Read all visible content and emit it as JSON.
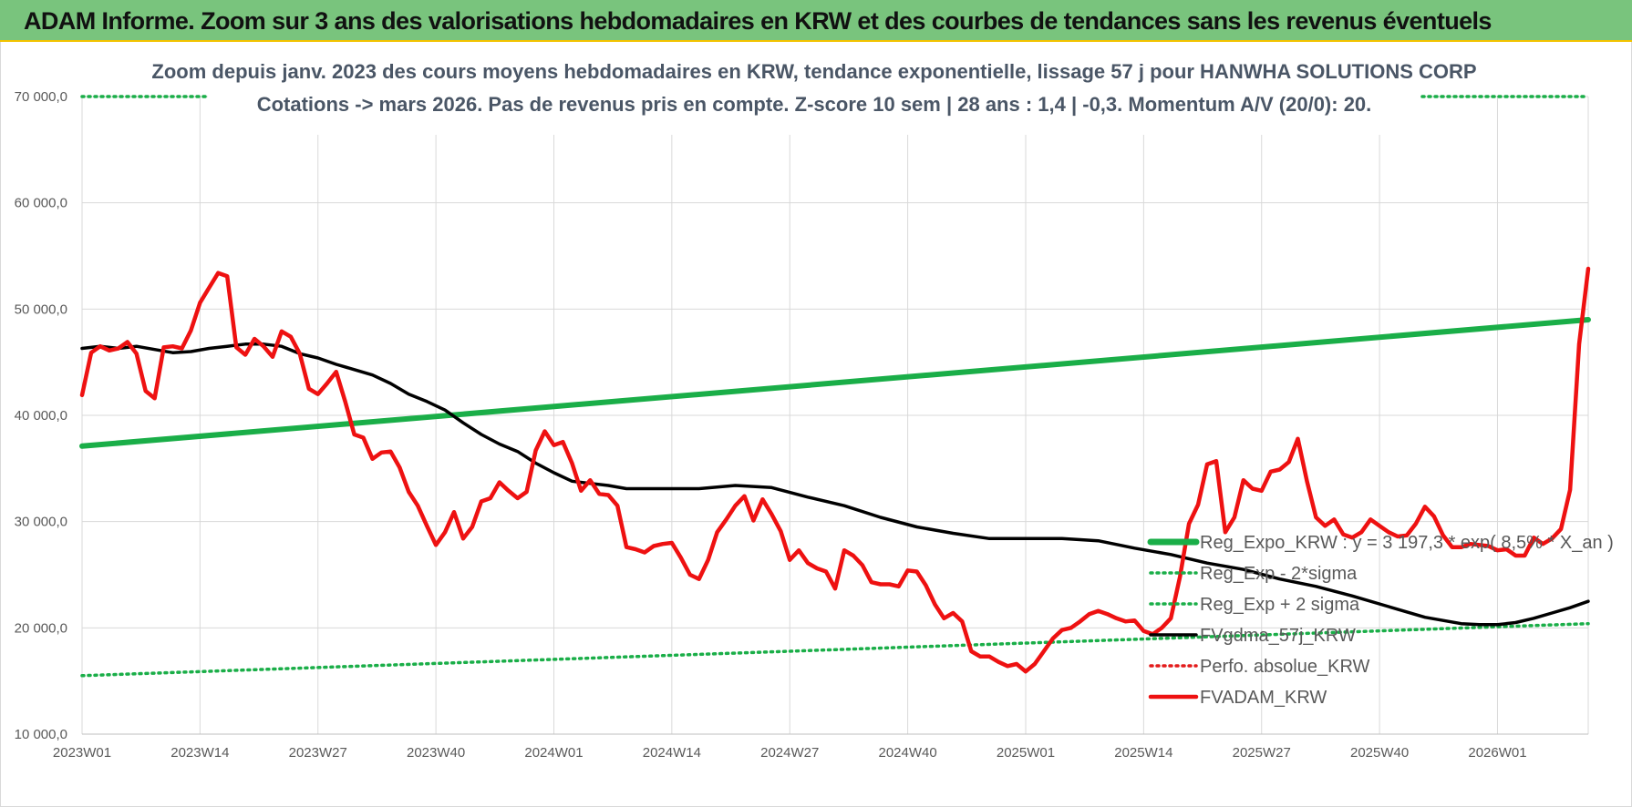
{
  "header": {
    "title": "ADAM Informe. Zoom sur 3 ans des valorisations hebdomadaires en KRW et des courbes de tendances sans les revenus éventuels"
  },
  "colors": {
    "banner": "#79c47d",
    "trend": "#1aae48",
    "band": "#1aae48",
    "smooth": "#000000",
    "perf": "#e31b1b",
    "price": "#ee1111"
  },
  "chart_data": {
    "type": "line",
    "title": "Zoom depuis janv. 2023 des cours moyens hebdomadaires en KRW, tendance exponentielle, lissage 57 j pour HANWHA SOLUTIONS CORP",
    "subtitle": "Cotations -> mars 2026. Pas de revenus pris en compte. Z-score 10 sem | 28 ans : 1,4 | -0,3. Momentum A/V (20/0): 20.",
    "x_tick_labels": [
      "2023W01",
      "2023W14",
      "2023W27",
      "2023W40",
      "2024W01",
      "2024W14",
      "2024W27",
      "2024W40",
      "2025W01",
      "2025W14",
      "2025W27",
      "2025W40",
      "2026W01"
    ],
    "y_tick_labels": [
      "10 000,0",
      "20 000,0",
      "30 000,0",
      "40 000,0",
      "50 000,0",
      "60 000,0",
      "70 000,0"
    ],
    "ylim": [
      10000,
      70000
    ],
    "x_range_weeks": [
      0,
      166
    ],
    "grid": true,
    "legend_position": "lower-right",
    "series": [
      {
        "name": "Reg_Expo_KRW : y = 3 197,3 * exp( 8,5% *  X_an )",
        "style": "thick-solid",
        "color": "#1aae48",
        "points": [
          [
            0,
            37100
          ],
          [
            166,
            49000
          ]
        ]
      },
      {
        "name": "Reg_Exp - 2*sigma",
        "style": "dotted",
        "color": "#1aae48",
        "points": [
          [
            0,
            15500
          ],
          [
            166,
            20400
          ]
        ]
      },
      {
        "name": "Reg_Exp + 2 sigma",
        "style": "dotted",
        "color": "#1aae48",
        "points": [
          [
            0,
            70000
          ],
          [
            166,
            70000
          ]
        ]
      },
      {
        "name": "FVgdma_57j_KRW",
        "style": "solid",
        "color": "#000000",
        "points": [
          [
            0,
            46300
          ],
          [
            2,
            46500
          ],
          [
            4,
            46300
          ],
          [
            6,
            46500
          ],
          [
            8,
            46200
          ],
          [
            10,
            45900
          ],
          [
            12,
            46000
          ],
          [
            14,
            46300
          ],
          [
            16,
            46500
          ],
          [
            18,
            46700
          ],
          [
            20,
            46700
          ],
          [
            22,
            46500
          ],
          [
            24,
            45800
          ],
          [
            26,
            45400
          ],
          [
            28,
            44800
          ],
          [
            30,
            44300
          ],
          [
            32,
            43800
          ],
          [
            34,
            43000
          ],
          [
            36,
            42000
          ],
          [
            38,
            41300
          ],
          [
            40,
            40500
          ],
          [
            42,
            39300
          ],
          [
            44,
            38200
          ],
          [
            46,
            37300
          ],
          [
            48,
            36600
          ],
          [
            50,
            35500
          ],
          [
            52,
            34600
          ],
          [
            54,
            33800
          ],
          [
            56,
            33600
          ],
          [
            58,
            33400
          ],
          [
            60,
            33100
          ],
          [
            64,
            33100
          ],
          [
            68,
            33100
          ],
          [
            72,
            33400
          ],
          [
            76,
            33200
          ],
          [
            80,
            32300
          ],
          [
            84,
            31500
          ],
          [
            88,
            30400
          ],
          [
            92,
            29500
          ],
          [
            96,
            28900
          ],
          [
            100,
            28400
          ],
          [
            104,
            28400
          ],
          [
            108,
            28400
          ],
          [
            112,
            28200
          ],
          [
            116,
            27500
          ],
          [
            120,
            26900
          ],
          [
            124,
            26100
          ],
          [
            128,
            25500
          ],
          [
            132,
            24600
          ],
          [
            136,
            23900
          ],
          [
            140,
            23000
          ],
          [
            144,
            22000
          ],
          [
            148,
            21000
          ],
          [
            152,
            20400
          ],
          [
            154,
            20300
          ],
          [
            156,
            20300
          ],
          [
            158,
            20500
          ],
          [
            160,
            20900
          ],
          [
            162,
            21400
          ],
          [
            164,
            21900
          ],
          [
            166,
            22500
          ]
        ]
      },
      {
        "name": "Perfo. absolue_KRW",
        "style": "dotted",
        "color": "#e31b1b",
        "points": []
      },
      {
        "name": "FVADAM_KRW",
        "style": "thick-solid",
        "color": "#ee1111",
        "points": [
          [
            0,
            41900
          ],
          [
            1,
            45900
          ],
          [
            2,
            46500
          ],
          [
            3,
            46100
          ],
          [
            4,
            46300
          ],
          [
            5,
            46900
          ],
          [
            6,
            45800
          ],
          [
            7,
            42300
          ],
          [
            8,
            41600
          ],
          [
            9,
            46400
          ],
          [
            10,
            46500
          ],
          [
            11,
            46300
          ],
          [
            12,
            48000
          ],
          [
            13,
            50600
          ],
          [
            14,
            52000
          ],
          [
            15,
            53400
          ],
          [
            16,
            53100
          ],
          [
            17,
            46400
          ],
          [
            18,
            45700
          ],
          [
            19,
            47200
          ],
          [
            20,
            46500
          ],
          [
            21,
            45500
          ],
          [
            22,
            47900
          ],
          [
            23,
            47400
          ],
          [
            24,
            45800
          ],
          [
            25,
            42500
          ],
          [
            26,
            42000
          ],
          [
            27,
            43000
          ],
          [
            28,
            44100
          ],
          [
            29,
            41300
          ],
          [
            30,
            38200
          ],
          [
            31,
            37900
          ],
          [
            32,
            35900
          ],
          [
            33,
            36500
          ],
          [
            34,
            36600
          ],
          [
            35,
            35100
          ],
          [
            36,
            32800
          ],
          [
            37,
            31500
          ],
          [
            38,
            29600
          ],
          [
            39,
            27800
          ],
          [
            40,
            29000
          ],
          [
            41,
            30900
          ],
          [
            42,
            28400
          ],
          [
            43,
            29500
          ],
          [
            44,
            31900
          ],
          [
            45,
            32200
          ],
          [
            46,
            33700
          ],
          [
            47,
            32900
          ],
          [
            48,
            32200
          ],
          [
            49,
            32800
          ],
          [
            50,
            36700
          ],
          [
            51,
            38500
          ],
          [
            52,
            37200
          ],
          [
            53,
            37500
          ],
          [
            54,
            35500
          ],
          [
            55,
            32900
          ],
          [
            56,
            33900
          ],
          [
            57,
            32600
          ],
          [
            58,
            32500
          ],
          [
            59,
            31500
          ],
          [
            60,
            27600
          ],
          [
            61,
            27400
          ],
          [
            62,
            27100
          ],
          [
            63,
            27700
          ],
          [
            64,
            27900
          ],
          [
            65,
            28000
          ],
          [
            66,
            26600
          ],
          [
            67,
            25000
          ],
          [
            68,
            24600
          ],
          [
            69,
            26400
          ],
          [
            70,
            29000
          ],
          [
            71,
            30200
          ],
          [
            72,
            31500
          ],
          [
            73,
            32400
          ],
          [
            74,
            30100
          ],
          [
            75,
            32100
          ],
          [
            76,
            30700
          ],
          [
            77,
            29100
          ],
          [
            78,
            26400
          ],
          [
            79,
            27300
          ],
          [
            80,
            26100
          ],
          [
            81,
            25600
          ],
          [
            82,
            25300
          ],
          [
            83,
            23700
          ],
          [
            84,
            27300
          ],
          [
            85,
            26800
          ],
          [
            86,
            25900
          ],
          [
            87,
            24300
          ],
          [
            88,
            24100
          ],
          [
            89,
            24100
          ],
          [
            90,
            23900
          ],
          [
            91,
            25400
          ],
          [
            92,
            25300
          ],
          [
            93,
            24000
          ],
          [
            94,
            22200
          ],
          [
            95,
            20900
          ],
          [
            96,
            21400
          ],
          [
            97,
            20600
          ],
          [
            98,
            17800
          ],
          [
            99,
            17300
          ],
          [
            100,
            17300
          ],
          [
            101,
            16800
          ],
          [
            102,
            16400
          ],
          [
            103,
            16600
          ],
          [
            104,
            15900
          ],
          [
            105,
            16600
          ],
          [
            106,
            17800
          ],
          [
            107,
            19000
          ],
          [
            108,
            19800
          ],
          [
            109,
            20000
          ],
          [
            110,
            20600
          ],
          [
            111,
            21300
          ],
          [
            112,
            21600
          ],
          [
            113,
            21300
          ],
          [
            114,
            20900
          ],
          [
            115,
            20600
          ],
          [
            116,
            20700
          ],
          [
            117,
            19700
          ],
          [
            118,
            19400
          ],
          [
            119,
            20000
          ],
          [
            120,
            20900
          ],
          [
            121,
            24800
          ],
          [
            122,
            29800
          ],
          [
            123,
            31600
          ],
          [
            124,
            35400
          ],
          [
            125,
            35700
          ],
          [
            126,
            29000
          ],
          [
            127,
            30400
          ],
          [
            128,
            33900
          ],
          [
            129,
            33100
          ],
          [
            130,
            32900
          ],
          [
            131,
            34700
          ],
          [
            132,
            34900
          ],
          [
            133,
            35600
          ],
          [
            134,
            37800
          ],
          [
            135,
            33800
          ],
          [
            136,
            30400
          ],
          [
            137,
            29600
          ],
          [
            138,
            30200
          ],
          [
            139,
            28800
          ],
          [
            140,
            28500
          ],
          [
            141,
            29000
          ],
          [
            142,
            30200
          ],
          [
            143,
            29600
          ],
          [
            144,
            29000
          ],
          [
            145,
            28600
          ],
          [
            146,
            28700
          ],
          [
            147,
            29800
          ],
          [
            148,
            31400
          ],
          [
            149,
            30500
          ],
          [
            150,
            28700
          ],
          [
            151,
            27600
          ],
          [
            152,
            27600
          ],
          [
            153,
            27900
          ],
          [
            154,
            27800
          ],
          [
            155,
            27700
          ],
          [
            156,
            27300
          ],
          [
            157,
            27400
          ],
          [
            158,
            26800
          ],
          [
            159,
            26800
          ],
          [
            160,
            28500
          ],
          [
            161,
            27900
          ],
          [
            162,
            28400
          ],
          [
            163,
            29300
          ],
          [
            164,
            33000
          ],
          [
            165,
            46700
          ],
          [
            166,
            53800
          ]
        ]
      }
    ]
  },
  "legend": [
    {
      "label": "Reg_Expo_KRW : y = 3 197,3 * exp( 8,5% *  X_an )",
      "style": "thick-solid",
      "color": "#1aae48"
    },
    {
      "label": "Reg_Exp - 2*sigma",
      "style": "dotted",
      "color": "#1aae48"
    },
    {
      "label": "Reg_Exp + 2 sigma",
      "style": "dotted",
      "color": "#1aae48"
    },
    {
      "label": "FVgdma_57j_KRW",
      "style": "solid",
      "color": "#000000"
    },
    {
      "label": "Perfo. absolue_KRW",
      "style": "dotted",
      "color": "#e31b1b"
    },
    {
      "label": "FVADAM_KRW",
      "style": "thick-solid",
      "color": "#ee1111"
    }
  ]
}
